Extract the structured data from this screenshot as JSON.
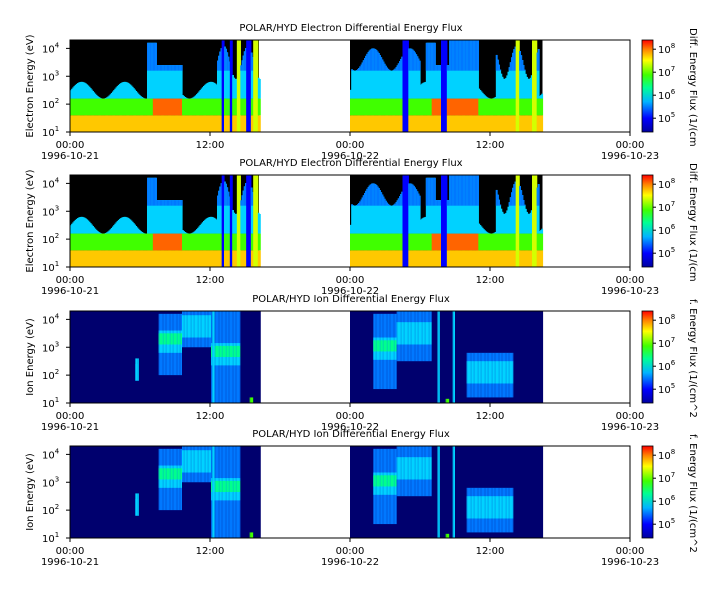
{
  "chart_data": [
    {
      "type": "heatmap",
      "title": "POLAR/HYD  Electron Differential Energy Flux",
      "ylabel": "Electron Energy (eV)",
      "colorbar_label": "Diff. Energy Flux (1/(cm",
      "yscale": "log",
      "ylim": [
        10,
        20000
      ],
      "y_ticks": [
        {
          "base": "10",
          "exp": "1",
          "v": 1
        },
        {
          "base": "10",
          "exp": "2",
          "v": 2
        },
        {
          "base": "10",
          "exp": "3",
          "v": 3
        },
        {
          "base": "10",
          "exp": "4",
          "v": 4
        }
      ],
      "colorbar_ticks": [
        {
          "base": "10",
          "exp": "5",
          "v": 5
        },
        {
          "base": "10",
          "exp": "6",
          "v": 6
        },
        {
          "base": "10",
          "exp": "7",
          "v": 7
        },
        {
          "base": "10",
          "exp": "8",
          "v": 8
        }
      ],
      "x_ticks": [
        {
          "time": "00:00",
          "date": "1996-10-21"
        },
        {
          "time": "12:00",
          "date": ""
        },
        {
          "time": "00:00",
          "date": "1996-10-22"
        },
        {
          "time": "12:00",
          "date": ""
        },
        {
          "time": "00:00",
          "date": "1996-10-23"
        }
      ],
      "xrange_hours": [
        0,
        48
      ],
      "data_gaps_hours": [
        [
          16.2,
          24.0
        ],
        [
          40.5,
          48.0
        ]
      ]
    },
    {
      "type": "heatmap",
      "title": "POLAR/HYD  Electron Differential Energy Flux",
      "ylabel": "Electron Energy (eV)",
      "colorbar_label": "Diff. Energy Flux (1/(cm",
      "yscale": "log",
      "ylim": [
        10,
        20000
      ],
      "y_ticks": [
        {
          "base": "10",
          "exp": "1",
          "v": 1
        },
        {
          "base": "10",
          "exp": "2",
          "v": 2
        },
        {
          "base": "10",
          "exp": "3",
          "v": 3
        },
        {
          "base": "10",
          "exp": "4",
          "v": 4
        }
      ],
      "colorbar_ticks": [
        {
          "base": "10",
          "exp": "5",
          "v": 5
        },
        {
          "base": "10",
          "exp": "6",
          "v": 6
        },
        {
          "base": "10",
          "exp": "7",
          "v": 7
        },
        {
          "base": "10",
          "exp": "8",
          "v": 8
        }
      ],
      "x_ticks": [
        {
          "time": "00:00",
          "date": "1996-10-21"
        },
        {
          "time": "12:00",
          "date": ""
        },
        {
          "time": "00:00",
          "date": "1996-10-22"
        },
        {
          "time": "12:00",
          "date": ""
        },
        {
          "time": "00:00",
          "date": "1996-10-23"
        }
      ],
      "xrange_hours": [
        0,
        48
      ],
      "data_gaps_hours": [
        [
          16.2,
          24.0
        ],
        [
          40.5,
          48.0
        ]
      ]
    },
    {
      "type": "heatmap",
      "title": "POLAR/HYD  Ion Differential Energy Flux",
      "ylabel": "Ion Energy (eV)",
      "colorbar_label": "f. Energy Flux (1/(cm^2",
      "yscale": "log",
      "ylim": [
        10,
        20000
      ],
      "y_ticks": [
        {
          "base": "10",
          "exp": "1",
          "v": 1
        },
        {
          "base": "10",
          "exp": "2",
          "v": 2
        },
        {
          "base": "10",
          "exp": "3",
          "v": 3
        },
        {
          "base": "10",
          "exp": "4",
          "v": 4
        }
      ],
      "colorbar_ticks": [
        {
          "base": "10",
          "exp": "5",
          "v": 5
        },
        {
          "base": "10",
          "exp": "6",
          "v": 6
        },
        {
          "base": "10",
          "exp": "7",
          "v": 7
        },
        {
          "base": "10",
          "exp": "8",
          "v": 8
        }
      ],
      "x_ticks": [
        {
          "time": "00:00",
          "date": "1996-10-21"
        },
        {
          "time": "12:00",
          "date": ""
        },
        {
          "time": "00:00",
          "date": "1996-10-22"
        },
        {
          "time": "12:00",
          "date": ""
        },
        {
          "time": "00:00",
          "date": "1996-10-23"
        }
      ],
      "xrange_hours": [
        0,
        48
      ],
      "data_gaps_hours": [
        [
          16.2,
          24.0
        ],
        [
          40.5,
          48.0
        ]
      ]
    },
    {
      "type": "heatmap",
      "title": "POLAR/HYD  Ion Differential Energy Flux",
      "ylabel": "Ion Energy (eV)",
      "colorbar_label": "f. Energy Flux (1/(cm^2",
      "yscale": "log",
      "ylim": [
        10,
        20000
      ],
      "y_ticks": [
        {
          "base": "10",
          "exp": "1",
          "v": 1
        },
        {
          "base": "10",
          "exp": "2",
          "v": 2
        },
        {
          "base": "10",
          "exp": "3",
          "v": 3
        },
        {
          "base": "10",
          "exp": "4",
          "v": 4
        }
      ],
      "colorbar_ticks": [
        {
          "base": "10",
          "exp": "5",
          "v": 5
        },
        {
          "base": "10",
          "exp": "6",
          "v": 6
        },
        {
          "base": "10",
          "exp": "7",
          "v": 7
        },
        {
          "base": "10",
          "exp": "8",
          "v": 8
        }
      ],
      "x_ticks": [
        {
          "time": "00:00",
          "date": "1996-10-21"
        },
        {
          "time": "12:00",
          "date": ""
        },
        {
          "time": "00:00",
          "date": "1996-10-22"
        },
        {
          "time": "12:00",
          "date": ""
        },
        {
          "time": "00:00",
          "date": "1996-10-23"
        }
      ],
      "xrange_hours": [
        0,
        48
      ],
      "data_gaps_hours": [
        [
          16.2,
          24.0
        ],
        [
          40.5,
          48.0
        ]
      ]
    }
  ]
}
